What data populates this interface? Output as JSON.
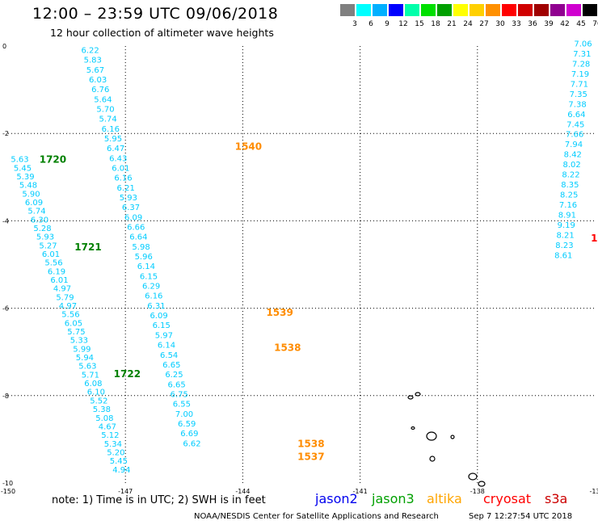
{
  "title": "12:00 – 23:59 UTC 09/06/2018",
  "subtitle": "12 hour collection of altimeter wave heights",
  "legend": {
    "colors": [
      "#808080",
      "#00ffff",
      "#00b0ff",
      "#0000ff",
      "#00ffaa",
      "#00e000",
      "#00a000",
      "#ffff00",
      "#ffd000",
      "#ff9000",
      "#ff0000",
      "#d00000",
      "#a00000",
      "#900090",
      "#d000d0",
      "#000000"
    ],
    "labels": [
      "3",
      "6",
      "9",
      "12",
      "15",
      "18",
      "21",
      "24",
      "27",
      "30",
      "33",
      "36",
      "39",
      "42",
      "45",
      "70"
    ],
    "unit": "(ft)"
  },
  "axes": {
    "x_ticks": [
      "-150",
      "-147",
      "-144",
      "-141",
      "-138",
      "-13"
    ],
    "y_ticks": [
      "0",
      "-2",
      "-4",
      "-6",
      "-8",
      "-10"
    ]
  },
  "chart_data": {
    "type": "scatter",
    "title": "12:00 – 23:59 UTC 09/06/2018",
    "subtitle": "12 hour collection of altimeter wave heights",
    "xlabel": "",
    "ylabel": "",
    "xlim": [
      -150,
      -135
    ],
    "ylim": [
      -10,
      0
    ],
    "grid": true,
    "tracks": [
      {
        "satellite": "altika",
        "color": "#00ccff",
        "lon_start": -147.9,
        "lat_start": -0.1,
        "lon_end": -145.3,
        "lat_end": -9.1,
        "values": [
          "6.22",
          "5.83",
          "5.67",
          "6.03",
          "6.76",
          "5.64",
          "5.70",
          "5.74",
          "6.16",
          "5.95",
          "6.47",
          "6.43",
          "6.01",
          "6.16",
          "6.21",
          "5.93",
          "6.37",
          "6.09",
          "6.66",
          "6.64",
          "5.98",
          "5.96",
          "6.14",
          "6.15",
          "6.29",
          "6.16",
          "6.31",
          "6.09",
          "6.15",
          "5.97",
          "6.14",
          "6.54",
          "6.65",
          "6.25",
          "6.65",
          "6.75",
          "6.55",
          "7.00",
          "6.59",
          "6.69",
          "6.62"
        ]
      },
      {
        "satellite": "jason3",
        "color": "#00ccff",
        "lon_start": -149.7,
        "lat_start": -2.6,
        "lon_end": -147.1,
        "lat_end": -9.7,
        "values": [
          "5.63",
          "5.45",
          "5.39",
          "5.48",
          "5.90",
          "6.09",
          "5.74",
          "6.30",
          "5.28",
          "5.93",
          "5.27",
          "6.01",
          "5.56",
          "6.19",
          "6.01",
          "4.97",
          "5.79",
          "4.97",
          "5.56",
          "6.05",
          "5.75",
          "5.33",
          "5.99",
          "5.94",
          "5.63",
          "5.71",
          "6.08",
          "6.10",
          "5.52",
          "5.38",
          "5.08",
          "4.67",
          "5.12",
          "5.34",
          "5.20",
          "5.45",
          "4.94"
        ]
      },
      {
        "satellite": "jason3",
        "color": "#00ccff",
        "lon_start": -135.3,
        "lat_start": 0.05,
        "lon_end": -135.8,
        "lat_end": -4.8,
        "values": [
          "7.06",
          "7.31",
          "7.28",
          "7.19",
          "7.71",
          "7.35",
          "7.38",
          "6.64",
          "7.45",
          "7.66",
          "7.94",
          "8.42",
          "8.02",
          "8.22",
          "8.35",
          "8.25",
          "7.16",
          "8.91",
          "9.19",
          "8.21",
          "8.23",
          "8.61"
        ]
      }
    ],
    "time_labels": [
      {
        "text": "1720",
        "satellite": "jason3",
        "color": "#008000",
        "lon": -149.2,
        "lat": -2.6
      },
      {
        "text": "1721",
        "satellite": "jason3",
        "color": "#008000",
        "lon": -148.3,
        "lat": -4.6
      },
      {
        "text": "1722",
        "satellite": "jason3",
        "color": "#008000",
        "lon": -147.3,
        "lat": -7.5
      },
      {
        "text": "1540",
        "satellite": "altika",
        "color": "#ff8c00",
        "lon": -144.2,
        "lat": -2.3
      },
      {
        "text": "1539",
        "satellite": "altika",
        "color": "#ff8c00",
        "lon": -143.4,
        "lat": -6.1
      },
      {
        "text": "1538",
        "satellite": "altika",
        "color": "#ff8c00",
        "lon": -143.2,
        "lat": -6.9
      },
      {
        "text": "1538",
        "satellite": "altika",
        "color": "#ff8c00",
        "lon": -142.6,
        "lat": -9.1
      },
      {
        "text": "1537",
        "satellite": "altika",
        "color": "#ff8c00",
        "lon": -142.6,
        "lat": -9.4
      },
      {
        "text": "18",
        "satellite": "cryosat",
        "color": "#ff0000",
        "lon": -135.1,
        "lat": -4.4
      }
    ]
  },
  "note": "note:  1) Time is in UTC;  2) SWH is in feet",
  "satellites": [
    {
      "name": "jason2",
      "color": "#0000ee"
    },
    {
      "name": "jason3",
      "color": "#00a000"
    },
    {
      "name": "altika",
      "color": "#ffa500"
    },
    {
      "name": "cryosat",
      "color": "#ff0000"
    },
    {
      "name": "s3a",
      "color": "#cc0000"
    }
  ],
  "credit": "NOAA/NESDIS Center for Satellite Applications and Research",
  "timestamp": "Sep  7 12:27:54 UTC 2018"
}
